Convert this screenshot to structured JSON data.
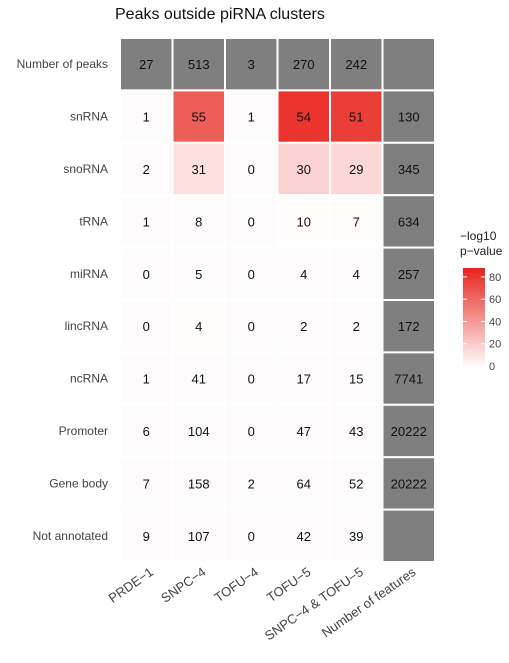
{
  "chart_data": {
    "type": "heatmap",
    "title": "Peaks outside piRNA clusters",
    "columns": [
      "PRDE−1",
      "SNPC−4",
      "TOFU−4",
      "TOFU−5",
      "SNPC−4 & TOFU−5",
      "Number of features"
    ],
    "rows": [
      "Number of peaks",
      "snRNA",
      "snoRNA",
      "tRNA",
      "miRNA",
      "lincRNA",
      "ncRNA",
      "Promoter",
      "Gene body",
      "Not annotated"
    ],
    "number_of_peaks": [
      27,
      513,
      3,
      270,
      242
    ],
    "number_of_features": [
      null,
      130,
      345,
      634,
      257,
      172,
      7741,
      20222,
      20222,
      null
    ],
    "counts": [
      [
        1,
        55,
        1,
        54,
        51
      ],
      [
        2,
        31,
        0,
        30,
        29
      ],
      [
        1,
        8,
        0,
        10,
        7
      ],
      [
        0,
        5,
        0,
        4,
        4
      ],
      [
        0,
        4,
        0,
        2,
        2
      ],
      [
        1,
        41,
        0,
        17,
        15
      ],
      [
        6,
        104,
        0,
        47,
        43
      ],
      [
        7,
        158,
        2,
        64,
        52
      ],
      [
        9,
        107,
        0,
        42,
        39
      ]
    ],
    "neg_log10_pvalue": [
      [
        0,
        65,
        0,
        82,
        78
      ],
      [
        0,
        12,
        0,
        18,
        16
      ],
      [
        0,
        0,
        0,
        1,
        1
      ],
      [
        0,
        0,
        0,
        0,
        0
      ],
      [
        0,
        1,
        0,
        0,
        0
      ],
      [
        0,
        0,
        0,
        0,
        0
      ],
      [
        0,
        0,
        0,
        0,
        0
      ],
      [
        0,
        0,
        0,
        0,
        0
      ],
      [
        0,
        0,
        0,
        0,
        0
      ]
    ],
    "legend": {
      "title_line1": "−log10",
      "title_line2": "p−value",
      "ticks": [
        80,
        60,
        40,
        20,
        0
      ],
      "range": [
        0,
        88
      ],
      "color_low": "#ffffff",
      "color_high": "#e8251e"
    },
    "colors": {
      "gray_cell": "#7f7f7f",
      "grid": "#ffffff"
    }
  }
}
